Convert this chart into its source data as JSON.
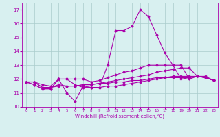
{
  "x": [
    0,
    1,
    2,
    3,
    4,
    5,
    6,
    7,
    8,
    9,
    10,
    11,
    12,
    13,
    14,
    15,
    16,
    17,
    18,
    19,
    20,
    21,
    22,
    23
  ],
  "line1": [
    11.8,
    11.6,
    11.3,
    11.3,
    12.0,
    11.0,
    10.4,
    11.5,
    11.4,
    11.4,
    13.0,
    15.5,
    15.5,
    15.8,
    17.0,
    16.5,
    15.2,
    13.9,
    13.0,
    12.0,
    12.1,
    12.2,
    12.1,
    11.9
  ],
  "line2": [
    11.8,
    11.6,
    11.3,
    11.3,
    12.0,
    12.0,
    11.6,
    11.4,
    11.4,
    11.4,
    11.5,
    11.5,
    11.6,
    11.7,
    11.8,
    11.9,
    12.0,
    12.1,
    12.1,
    12.1,
    12.1,
    12.2,
    12.1,
    11.9
  ],
  "line3": [
    11.8,
    11.8,
    11.4,
    11.4,
    11.5,
    11.5,
    11.5,
    11.6,
    11.6,
    11.7,
    11.7,
    11.8,
    11.8,
    11.9,
    11.9,
    12.0,
    12.1,
    12.1,
    12.2,
    12.2,
    12.2,
    12.2,
    12.1,
    11.9
  ],
  "line4": [
    11.8,
    11.8,
    11.4,
    11.4,
    11.6,
    11.5,
    11.5,
    11.6,
    11.6,
    11.7,
    11.8,
    11.9,
    12.0,
    12.1,
    12.2,
    12.3,
    12.5,
    12.6,
    12.7,
    12.8,
    12.8,
    12.2,
    12.1,
    11.9
  ],
  "line5": [
    11.8,
    11.8,
    11.6,
    11.5,
    12.0,
    12.0,
    12.0,
    12.0,
    11.8,
    11.9,
    12.1,
    12.3,
    12.5,
    12.6,
    12.8,
    13.0,
    13.0,
    13.0,
    13.0,
    13.0,
    12.0,
    12.2,
    12.2,
    11.9
  ],
  "color": "#aa00aa",
  "bg_color": "#d8f0f0",
  "grid_color": "#aacccc",
  "xlabel": "Windchill (Refroidissement éolien,°C)",
  "ylim": [
    10,
    17.5
  ],
  "xlim": [
    -0.5,
    23.5
  ],
  "yticks": [
    10,
    11,
    12,
    13,
    14,
    15,
    16,
    17
  ],
  "xticks": [
    0,
    1,
    2,
    3,
    4,
    5,
    6,
    7,
    8,
    9,
    10,
    11,
    12,
    13,
    14,
    15,
    16,
    17,
    18,
    19,
    20,
    21,
    22,
    23
  ]
}
